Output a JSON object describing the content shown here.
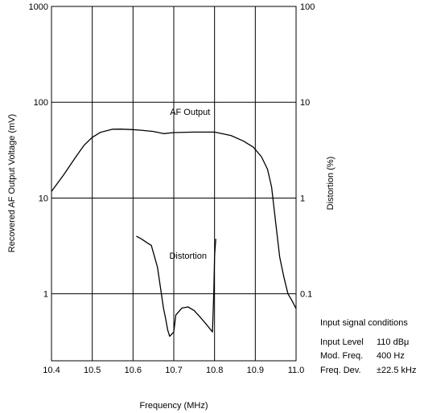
{
  "chart_data": {
    "type": "line",
    "x_label": "Frequency (MHz)",
    "y_left_label": "Recovered AF Output Voltage (mV)",
    "y_right_label": "Distortion (%)",
    "x_range": [
      10.4,
      11.0
    ],
    "x_ticks": [
      "10.4",
      "10.5",
      "10.6",
      "10.7",
      "10.8",
      "10.9",
      "11.0"
    ],
    "x_tick_values": [
      10.4,
      10.5,
      10.6,
      10.7,
      10.8,
      10.9,
      11.0
    ],
    "y_left_scale": "log",
    "y_left_range": [
      0.2,
      1000
    ],
    "y_left_ticks": [
      "1",
      "10",
      "100",
      "1000"
    ],
    "y_left_tick_values": [
      1,
      10,
      100,
      1000
    ],
    "y_right_scale": "log",
    "y_right_range": [
      0.02,
      100
    ],
    "y_right_ticks": [
      "0.1",
      "1",
      "10",
      "100"
    ],
    "y_right_tick_values": [
      0.1,
      1,
      10,
      100
    ],
    "grid": true,
    "series": [
      {
        "name": "AF Output",
        "axis": "left",
        "color": "#000000",
        "x": [
          10.4,
          10.43,
          10.46,
          10.48,
          10.5,
          10.52,
          10.54,
          10.55,
          10.57,
          10.6,
          10.62,
          10.65,
          10.675,
          10.7,
          10.75,
          10.8,
          10.84,
          10.87,
          10.895,
          10.915,
          10.93,
          10.94,
          10.95,
          10.96,
          10.97,
          10.98,
          10.99,
          11.0
        ],
        "y": [
          11.7,
          17.5,
          27,
          35.5,
          43,
          48.5,
          51,
          52.3,
          52.4,
          51.8,
          51,
          49.5,
          47,
          48.2,
          48.8,
          48.8,
          45,
          39.5,
          34,
          27,
          20,
          13,
          5.5,
          2.4,
          1.5,
          1.0,
          0.85,
          0.7
        ]
      },
      {
        "name": "Distortion",
        "axis": "right",
        "color": "#000000",
        "x": [
          10.608,
          10.62,
          10.635,
          10.645,
          10.66,
          10.675,
          10.68,
          10.685,
          10.69,
          10.7,
          10.705,
          10.72,
          10.735,
          10.75,
          10.765,
          10.78,
          10.795,
          10.798,
          10.8,
          10.803
        ],
        "y": [
          0.4,
          0.375,
          0.34,
          0.32,
          0.19,
          0.07,
          0.055,
          0.042,
          0.036,
          0.04,
          0.06,
          0.071,
          0.073,
          0.067,
          0.057,
          0.048,
          0.04,
          0.1,
          0.25,
          0.375
        ]
      }
    ],
    "annotations": [
      {
        "text": "AF Output",
        "x": 10.74,
        "y_left": 80
      },
      {
        "text": "Distortion",
        "x": 10.735,
        "y_left": 2.5
      }
    ],
    "conditions": {
      "title": "Input signal conditions",
      "rows": [
        {
          "label": "Input Level",
          "value": "110 dBμ"
        },
        {
          "label": "Mod. Freq.",
          "value": "400 Hz"
        },
        {
          "label": "Freq. Dev.",
          "value": "±22.5 kHz"
        }
      ]
    }
  }
}
